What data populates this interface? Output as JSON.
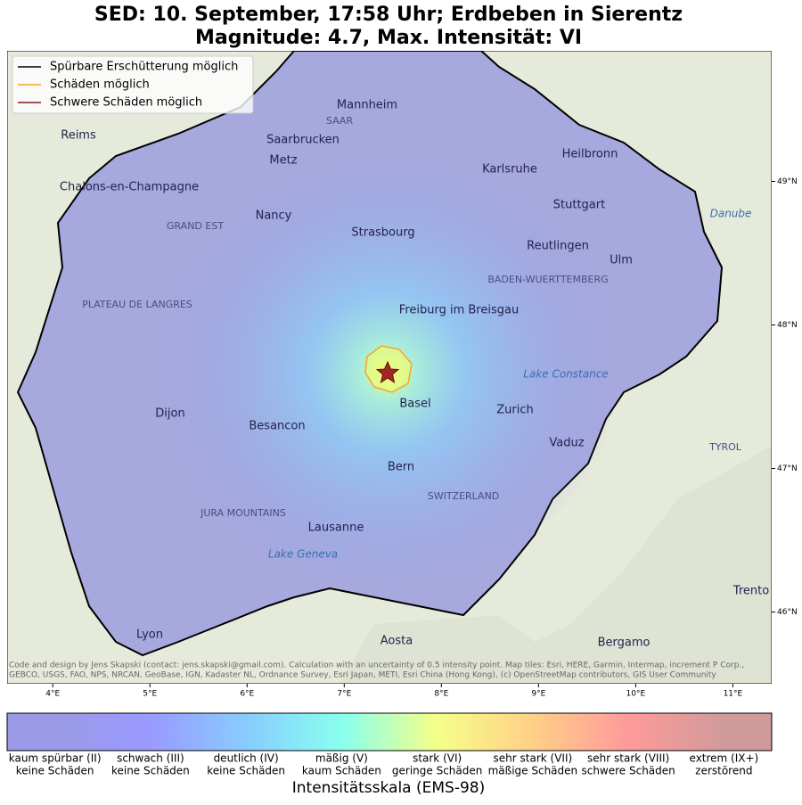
{
  "header": {
    "title": [
      "SED: 10. September, 17:58 Uhr; Erdbeben in Sierentz",
      "Magnitude: 4.7, Max. Intensität: VI"
    ]
  },
  "legend": [
    {
      "label": "Spürbare Erschütterung möglich",
      "color": "#000000"
    },
    {
      "label": "Schäden möglich",
      "color": "#f5a623"
    },
    {
      "label": "Schwere Schäden möglich",
      "color": "#8b1a1a"
    }
  ],
  "map": {
    "lon_range": [
      3.53,
      11.4
    ],
    "lat_range": [
      45.5,
      49.91
    ],
    "lon_ticks": [
      {
        "value": 4,
        "label": "4°E"
      },
      {
        "value": 5,
        "label": "5°E"
      },
      {
        "value": 6,
        "label": "6°E"
      },
      {
        "value": 7,
        "label": "7°E"
      },
      {
        "value": 8,
        "label": "8°E"
      },
      {
        "value": 9,
        "label": "9°E"
      },
      {
        "value": 10,
        "label": "10°E"
      },
      {
        "value": 11,
        "label": "11°E"
      }
    ],
    "lat_ticks": [
      {
        "value": 46,
        "label": "46°N"
      },
      {
        "value": 47,
        "label": "47°N"
      },
      {
        "value": 48,
        "label": "48°N"
      },
      {
        "value": 49,
        "label": "49°N"
      }
    ],
    "places": [
      "Mannheim",
      "Heilbronn",
      "Saarbrucken",
      "Metz",
      "Karlsruhe",
      "Reims",
      "Chalons-en-Champagne",
      "Nancy",
      "Stuttgart",
      "Strasbourg",
      "Reutlingen",
      "Ulm",
      "Freiburg im Breisgau",
      "Dijon",
      "Basel",
      "Zurich",
      "Vaduz",
      "Besancon",
      "Bern",
      "SWITZERLAND",
      "Lausanne",
      "Lake Geneva",
      "Lake Constance",
      "Aosta",
      "Bergamo",
      "Lyon",
      "Trento",
      "GRAND EST",
      "PLATEAU DE LANGRES",
      "JURA MOUNTAINS",
      "BADEN-WUERTTEMBERG",
      "SAAR",
      "Danube",
      "TYROL"
    ],
    "attribution": [
      "Code and design by Jens Skapski (contact: jens.skapski@gmail.com). Calculation with an uncertainty of 0.5 intensity point. Map tiles: Esri, HERE, Garmin, Intermap, increment P Corp.,",
      "GEBCO, USGS, FAO, NPS, NRCAN, GeoBase, IGN, Kadaster NL, Ordnance Survey, Esri Japan, METI, Esri China (Hong Kong), (c) OpenStreetMap contributors, GIS User Community"
    ]
  },
  "colorbar": {
    "title": "Intensitätsskala (EMS-98)",
    "classes": [
      {
        "level": "kaum spürbar (II)",
        "damage": "keine Schäden",
        "color": "#9a9ae6"
      },
      {
        "level": "schwach (III)",
        "damage": "keine Schäden",
        "color": "#9a9aff"
      },
      {
        "level": "deutlich (IV)",
        "damage": "keine Schäden",
        "color": "#88ccff"
      },
      {
        "level": "mäßig (V)",
        "damage": "kaum Schäden",
        "color": "#88ffee"
      },
      {
        "level": "stark (VI)",
        "damage": "geringe Schäden",
        "color": "#f5ff88"
      },
      {
        "level": "sehr stark (VII)",
        "damage": "mäßige Schäden",
        "color": "#ffd088"
      },
      {
        "level": "sehr stark (VIII)",
        "damage": "schwere Schäden",
        "color": "#ff9a9a"
      },
      {
        "level": "extrem (IX+)",
        "damage": "zerstörend",
        "color": "#d09a9a"
      }
    ]
  }
}
